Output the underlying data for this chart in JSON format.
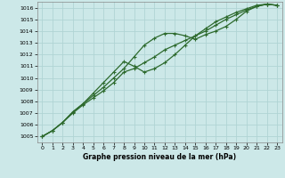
{
  "x": [
    0,
    1,
    2,
    3,
    4,
    5,
    6,
    7,
    8,
    9,
    10,
    11,
    12,
    13,
    14,
    15,
    16,
    17,
    18,
    19,
    20,
    21,
    22,
    23
  ],
  "line1": [
    1005.0,
    1005.5,
    1006.2,
    1007.1,
    1007.8,
    1008.5,
    1009.2,
    1010.0,
    1010.8,
    1011.8,
    1012.8,
    1013.4,
    1013.8,
    1013.8,
    1013.6,
    1013.3,
    1013.7,
    1014.0,
    1014.4,
    1015.0,
    1015.7,
    1016.1,
    1016.3,
    1016.2
  ],
  "line2": [
    1005.0,
    1005.5,
    1006.2,
    1007.0,
    1007.7,
    1008.3,
    1008.9,
    1009.6,
    1010.5,
    1010.8,
    1011.3,
    1011.8,
    1012.4,
    1012.8,
    1013.2,
    1013.6,
    1014.0,
    1014.5,
    1015.0,
    1015.4,
    1015.8,
    1016.1,
    1016.3,
    1016.2
  ],
  "line3": [
    1005.0,
    1005.5,
    1006.2,
    1007.1,
    1007.8,
    1008.7,
    1009.6,
    1010.5,
    1011.4,
    1011.0,
    1010.5,
    1010.8,
    1011.3,
    1012.0,
    1012.8,
    1013.6,
    1014.2,
    1014.8,
    1015.2,
    1015.6,
    1015.9,
    1016.2,
    1016.3,
    1016.2
  ],
  "line_color": "#2d6a2d",
  "bg_color": "#cce8e8",
  "grid_color": "#b0d4d4",
  "ylim": [
    1004.5,
    1016.5
  ],
  "yticks": [
    1005,
    1006,
    1007,
    1008,
    1009,
    1010,
    1011,
    1012,
    1013,
    1014,
    1015,
    1016
  ],
  "xlim": [
    -0.5,
    23.5
  ],
  "xticks": [
    0,
    1,
    2,
    3,
    4,
    5,
    6,
    7,
    8,
    9,
    10,
    11,
    12,
    13,
    14,
    15,
    16,
    17,
    18,
    19,
    20,
    21,
    22,
    23
  ],
  "xlabel": "Graphe pression niveau de la mer (hPa)"
}
